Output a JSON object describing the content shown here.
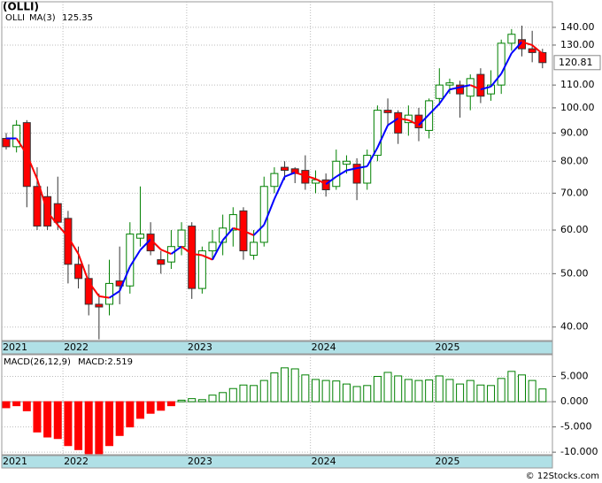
{
  "chart_data": [
    {
      "type": "candlestick",
      "title": "(OLLI)",
      "name": "OLLI",
      "name_color": "#008000",
      "categories": [
        "2021",
        null,
        null,
        null,
        null,
        null,
        "2022",
        null,
        null,
        null,
        null,
        null,
        null,
        null,
        null,
        null,
        null,
        null,
        "2023",
        null,
        null,
        null,
        null,
        null,
        null,
        null,
        null,
        null,
        null,
        null,
        "2024",
        null,
        null,
        null,
        null,
        null,
        null,
        null,
        null,
        null,
        null,
        null,
        "2025",
        null,
        null,
        null,
        null,
        null,
        null,
        null,
        null,
        null,
        null
      ],
      "open": [
        88,
        85,
        94,
        72,
        69,
        67,
        63,
        52,
        49,
        44,
        44,
        48.5,
        47.5,
        58,
        59,
        53,
        52.5,
        56,
        61,
        47,
        55,
        57,
        60,
        65,
        54,
        57,
        72,
        78,
        77.5,
        77,
        73,
        74,
        72,
        79,
        79,
        73,
        82,
        99,
        98,
        94,
        97,
        91,
        104,
        110,
        110,
        105,
        115,
        106,
        110,
        131,
        133,
        128,
        126
      ],
      "high": [
        90,
        95,
        95,
        78,
        72,
        75,
        65,
        56,
        52,
        46,
        53,
        56,
        62,
        72,
        62,
        55,
        60,
        62,
        62,
        56,
        60,
        64,
        66,
        66,
        60,
        75,
        78,
        80,
        78,
        82,
        77,
        76,
        84,
        82,
        81,
        84,
        101,
        104,
        99,
        101,
        100,
        104,
        118,
        113,
        112,
        115,
        118,
        117,
        133,
        139,
        141,
        138,
        128
      ],
      "low": [
        84,
        83,
        66,
        60,
        60,
        60,
        48,
        47,
        42,
        38,
        42,
        44,
        46,
        56,
        54,
        50,
        51,
        54,
        45,
        46,
        53,
        54,
        56,
        53,
        53,
        56,
        70,
        74,
        73,
        71,
        70,
        69,
        71,
        76,
        68,
        71,
        80,
        93,
        86,
        89,
        87,
        88,
        101,
        106,
        96,
        99,
        102,
        103,
        106,
        127,
        124,
        121,
        118
      ],
      "close": [
        85,
        93,
        72,
        61,
        61,
        62,
        52,
        49,
        44,
        43.5,
        48,
        47.5,
        59,
        59,
        55,
        52,
        56,
        60,
        47,
        55,
        57,
        60.5,
        64,
        55,
        57,
        72,
        76,
        77,
        76,
        73,
        74,
        71,
        80,
        80,
        73,
        82,
        99,
        98,
        90,
        97,
        92,
        103,
        110,
        111,
        106,
        113,
        105,
        110,
        131,
        136,
        128,
        126,
        120.81
      ],
      "up_color": "#008000",
      "down_color": "#ff0000",
      "ma": {
        "name": "MA(3)",
        "color": "#0000ff",
        "rising_color": "#0000ff",
        "falling_color": "#ff0000",
        "values": [
          88,
          88,
          82.3,
          74.3,
          64.7,
          61.3,
          58.3,
          54.3,
          48.3,
          45.5,
          45.2,
          46.5,
          51.5,
          55.2,
          57.7,
          55.3,
          54.3,
          56,
          54.3,
          54,
          53,
          57.5,
          60.5,
          59.8,
          58.7,
          61.3,
          68.3,
          75,
          76.3,
          75.3,
          74.3,
          72.7,
          75,
          77,
          77.7,
          78.3,
          84.7,
          93,
          95.7,
          95,
          93,
          97.3,
          101.7,
          108,
          109,
          110,
          108,
          109.3,
          115.3,
          125.7,
          131.7,
          130,
          125.35
        ]
      },
      "log_scale": true,
      "grid": true,
      "ylim": [
        37.8,
        155.8
      ],
      "yticks": [
        {
          "value": 40,
          "label": "40.00"
        },
        {
          "value": 50,
          "label": "50.00"
        },
        {
          "value": 60,
          "label": "60.00"
        },
        {
          "value": 70,
          "label": "70.00"
        },
        {
          "value": 80,
          "label": "80.00"
        },
        {
          "value": 90,
          "label": "90.00"
        },
        {
          "value": 100,
          "label": "100.00"
        },
        {
          "value": 110,
          "label": "110.00"
        },
        {
          "value": 130,
          "label": "130.00"
        },
        {
          "value": 140,
          "label": "140.00"
        }
      ]
    },
    {
      "type": "bar",
      "title": "MACD(26,12,9)",
      "legend_text": "MACD:2.519",
      "legend_color": "#0000ff",
      "positive_color": "#008000",
      "negative_color": "#ff0000",
      "values": [
        -1.2,
        -0.8,
        -1.8,
        -6,
        -7,
        -7.3,
        -8.7,
        -9.5,
        -10.3,
        -10.3,
        -8.7,
        -6.7,
        -5,
        -3.3,
        -2.3,
        -1.7,
        -0.8,
        0.3,
        0.6,
        0.4,
        1.3,
        1.8,
        2.6,
        3.3,
        3.2,
        4.2,
        5.7,
        6.7,
        6.5,
        5.3,
        4.4,
        4.2,
        4.1,
        3.5,
        3,
        3.2,
        5,
        5.8,
        5.1,
        4.4,
        4.2,
        4.3,
        5.1,
        4.4,
        3.5,
        4.2,
        3.3,
        3.2,
        4.6,
        6,
        5.3,
        4.2,
        2.519
      ],
      "ylim": [
        -10.5,
        9.3
      ],
      "grid": true,
      "yticks": [
        {
          "value": 5,
          "label": "5.000"
        },
        {
          "value": 0,
          "label": "0.000"
        },
        {
          "value": -5,
          "label": "-5.000"
        },
        {
          "value": -10,
          "label": "-10.000"
        }
      ]
    }
  ],
  "footer": "© 12Stocks.com"
}
